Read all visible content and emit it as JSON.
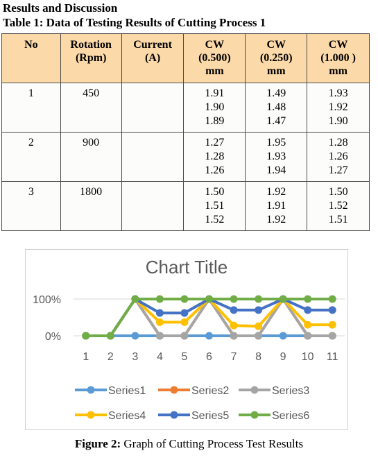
{
  "heading": "Results and Discussion",
  "table": {
    "title": "Table 1: Data of Testing Results of Cutting Process 1",
    "headers": [
      "No",
      "Rotation\n(Rpm)",
      "Current\n(A)",
      "CW\n(0.500)\nmm",
      "CW\n(0.250)\nmm",
      "CW\n(1.000 )\nmm"
    ],
    "rows": [
      {
        "no": "1",
        "rotation": "450",
        "current": "",
        "cw0500": [
          "1.91",
          "1.90",
          "1.89"
        ],
        "cw0250": [
          "1.49",
          "1.48",
          "1.47"
        ],
        "cw1000": [
          "1.93",
          "1.92",
          "1.90"
        ]
      },
      {
        "no": "2",
        "rotation": "900",
        "current": "",
        "cw0500": [
          "1.27",
          "1.28",
          "1.26"
        ],
        "cw0250": [
          "1.95",
          "1.93",
          "1.94"
        ],
        "cw1000": [
          "1.28",
          "1.26",
          "1.27"
        ]
      },
      {
        "no": "3",
        "rotation": "1800",
        "current": "",
        "cw0500": [
          "1.50",
          "1.51",
          "1.52"
        ],
        "cw0250": [
          "1.92",
          "1.91",
          "1.92"
        ],
        "cw1000": [
          "1.50",
          "1.52",
          "1.51"
        ]
      }
    ]
  },
  "chart_data": {
    "type": "line",
    "title": "Chart Title",
    "x": [
      1,
      2,
      3,
      4,
      5,
      6,
      7,
      8,
      9,
      10,
      11
    ],
    "y_ticks": [
      "0%",
      "100%"
    ],
    "ylim": [
      0,
      1
    ],
    "grid": true,
    "legend_position": "bottom",
    "series": [
      {
        "name": "Series1",
        "color": "#5b9bd5",
        "values": [
          0,
          0,
          0,
          0,
          0,
          0,
          0,
          0,
          0,
          0,
          0
        ]
      },
      {
        "name": "Series2",
        "color": "#ed7d31",
        "values": [
          0,
          0,
          1,
          0,
          0,
          1,
          0,
          0,
          1,
          0,
          0
        ]
      },
      {
        "name": "Series3",
        "color": "#a5a5a5",
        "values": [
          0,
          0,
          1,
          0,
          0,
          1,
          0,
          0,
          1,
          0,
          0
        ]
      },
      {
        "name": "Series4",
        "color": "#ffc000",
        "values": [
          0,
          0,
          1,
          0.37,
          0.37,
          1,
          0.28,
          0.26,
          1,
          0.3,
          0.3
        ]
      },
      {
        "name": "Series5",
        "color": "#4472c4",
        "values": [
          0,
          0,
          1,
          0.62,
          0.62,
          1,
          0.7,
          0.7,
          1,
          0.7,
          0.7
        ]
      },
      {
        "name": "Series6",
        "color": "#70ad47",
        "values": [
          0,
          0,
          1,
          1,
          1,
          1,
          1,
          1,
          1,
          1,
          1
        ]
      }
    ]
  },
  "caption": {
    "label": "Figure 2:",
    "text": " Graph of Cutting Process Test Results"
  }
}
